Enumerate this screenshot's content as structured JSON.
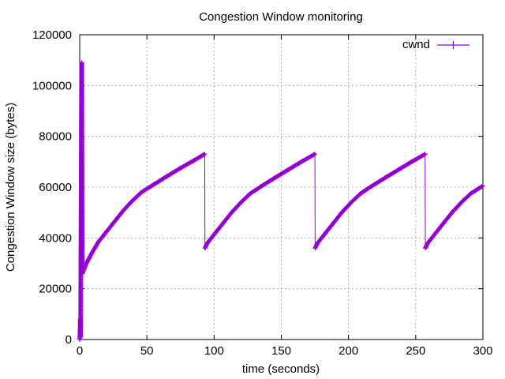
{
  "chart_data": {
    "type": "line",
    "title": "Congestion Window monitoring",
    "xlabel": "time (seconds)",
    "ylabel": "Congestion Window size (bytes)",
    "xlim": [
      0,
      300
    ],
    "ylim": [
      0,
      120000
    ],
    "x_ticks": [
      0,
      50,
      100,
      150,
      200,
      250,
      300
    ],
    "y_ticks": [
      0,
      20000,
      40000,
      60000,
      80000,
      100000,
      120000
    ],
    "grid": true,
    "legend_position": "top-right",
    "series": [
      {
        "name": "cwnd",
        "color": "#9400d3",
        "points": [
          [
            0,
            0
          ],
          [
            0.3,
            3000
          ],
          [
            0.5,
            8000
          ],
          [
            0.7,
            1000
          ],
          [
            0.9,
            30000
          ],
          [
            1.1,
            55000
          ],
          [
            1.3,
            85000
          ],
          [
            1.5,
            109000
          ],
          [
            1.7,
            50000
          ],
          [
            2,
            26000
          ],
          [
            5,
            30000
          ],
          [
            9,
            34000
          ],
          [
            14,
            38500
          ],
          [
            20,
            42500
          ],
          [
            26,
            46500
          ],
          [
            32,
            50500
          ],
          [
            38,
            54000
          ],
          [
            46,
            58000
          ],
          [
            55,
            61000
          ],
          [
            65,
            64300
          ],
          [
            75,
            67500
          ],
          [
            85,
            70500
          ],
          [
            93,
            73000
          ],
          [
            93.2,
            36000
          ],
          [
            95,
            38000
          ],
          [
            101,
            42000
          ],
          [
            107,
            46000
          ],
          [
            113,
            50000
          ],
          [
            120,
            54000
          ],
          [
            127,
            57500
          ],
          [
            135,
            60300
          ],
          [
            145,
            63600
          ],
          [
            155,
            66800
          ],
          [
            165,
            70000
          ],
          [
            175,
            73000
          ],
          [
            175.2,
            36000
          ],
          [
            177,
            38000
          ],
          [
            183,
            42000
          ],
          [
            189,
            46000
          ],
          [
            195,
            50000
          ],
          [
            202,
            54000
          ],
          [
            209,
            57500
          ],
          [
            217,
            60300
          ],
          [
            227,
            63600
          ],
          [
            237,
            66800
          ],
          [
            247,
            70000
          ],
          [
            257,
            73000
          ],
          [
            257.2,
            36000
          ],
          [
            259,
            38000
          ],
          [
            265,
            42000
          ],
          [
            271,
            46000
          ],
          [
            277,
            50000
          ],
          [
            284,
            54000
          ],
          [
            291,
            57500
          ],
          [
            300,
            60500
          ]
        ]
      }
    ]
  }
}
